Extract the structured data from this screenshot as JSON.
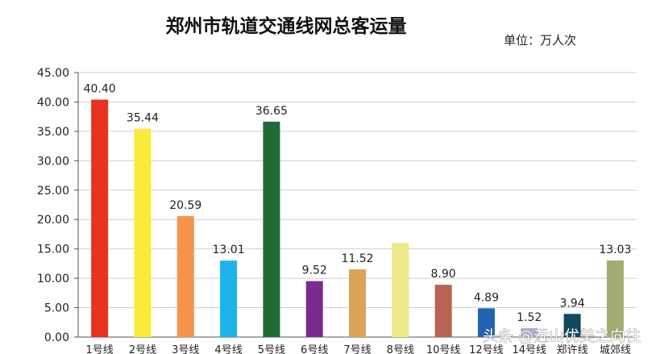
{
  "chart_data": {
    "type": "bar",
    "title": "郑州市轨道交通线网总客运量",
    "unit_label": "单位：万人次",
    "categories": [
      "1号线",
      "2号线",
      "3号线",
      "4号线",
      "5号线",
      "6号线",
      "7号线",
      "8号线",
      "10号线",
      "12号线",
      "14号线",
      "郑许线",
      "城郊线"
    ],
    "values": [
      40.4,
      35.44,
      20.59,
      13.01,
      36.65,
      9.52,
      11.52,
      16.02,
      8.9,
      4.89,
      1.52,
      3.94,
      13.03
    ],
    "value_labels": [
      "40.40",
      "35.44",
      "20.59",
      "13.01",
      "36.65",
      "9.52",
      "11.52",
      "",
      "8.90",
      "4.89",
      "1.52",
      "3.94",
      "13.03"
    ],
    "colors": [
      "#e8321f",
      "#f9ea3c",
      "#f5944a",
      "#1eb4ea",
      "#1f6b35",
      "#7a2c8e",
      "#d9a458",
      "#ece98a",
      "#b86452",
      "#1e64b0",
      "#b9a7d6",
      "#12485e",
      "#a2ad72"
    ],
    "y_ticks": [
      "0.00",
      "5.00",
      "10.00",
      "15.00",
      "20.00",
      "25.00",
      "30.00",
      "35.00",
      "40.00",
      "45.00"
    ],
    "ylim": [
      0,
      45
    ],
    "xlabel": "",
    "ylabel": "",
    "grid": true,
    "legend": "none"
  },
  "watermark": "头条 @远山优美之向往"
}
